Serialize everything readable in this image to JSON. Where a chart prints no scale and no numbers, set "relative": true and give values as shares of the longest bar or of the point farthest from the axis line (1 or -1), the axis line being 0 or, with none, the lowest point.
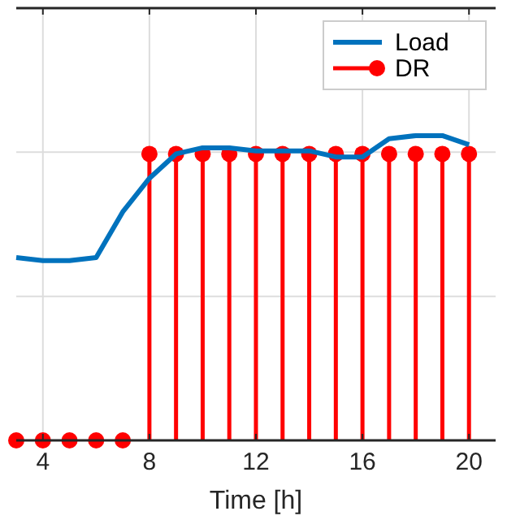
{
  "chart_data": {
    "type": "line",
    "relative": true,
    "xlabel": "Time [h]",
    "x": [
      3,
      4,
      5,
      6,
      7,
      8,
      9,
      10,
      11,
      12,
      13,
      14,
      15,
      16,
      17,
      18,
      19,
      20
    ],
    "xlim": [
      3,
      21
    ],
    "xticks": [
      4,
      8,
      12,
      16,
      20
    ],
    "series": [
      {
        "name": "Load",
        "color": "#0072bd",
        "values": [
          0.6,
          0.59,
          0.59,
          0.6,
          0.75,
          0.86,
          0.94,
          0.96,
          0.96,
          0.95,
          0.95,
          0.95,
          0.93,
          0.93,
          0.99,
          1,
          1,
          0.97
        ]
      },
      {
        "name": "DR",
        "type": "lollipop",
        "color": "#ff0000",
        "marker": "circle",
        "values": [
          0,
          0,
          0,
          0,
          0,
          0.94,
          0.94,
          0.94,
          0.94,
          0.94,
          0.94,
          0.94,
          0.94,
          0.94,
          0.94,
          0.94,
          0.94,
          0.94
        ]
      }
    ],
    "grid": true,
    "tick_labels": "x",
    "legend": "top right"
  }
}
